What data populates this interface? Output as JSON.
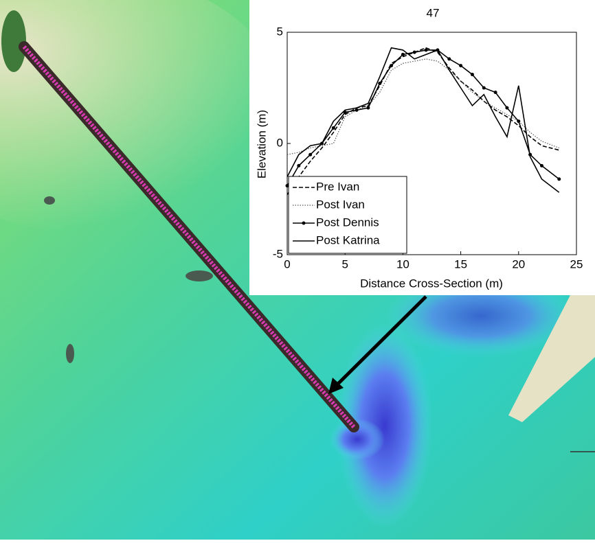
{
  "chart_data": {
    "type": "line",
    "title": "47",
    "xlabel": "Distance Cross-Section (m)",
    "ylabel": "Elevation (m)",
    "x": [
      0,
      1,
      2,
      3,
      4,
      5,
      6,
      7,
      8,
      9,
      10,
      11,
      12,
      13,
      14,
      15,
      16,
      17,
      18,
      19,
      20,
      21,
      22,
      23.5
    ],
    "xlim": [
      0,
      25
    ],
    "xticks": [
      0,
      5,
      10,
      15,
      20,
      25
    ],
    "ylim": [
      -5,
      5
    ],
    "yticks": [
      -5,
      0,
      5
    ],
    "legend": "lower left",
    "series": [
      {
        "name": "Pre Ivan",
        "color": "#000000",
        "line_style": "dashed",
        "marker": "none",
        "values": [
          -2.3,
          -1.5,
          -0.8,
          -0.2,
          0.5,
          1.3,
          1.6,
          1.7,
          2.6,
          3.6,
          3.9,
          4.1,
          4.3,
          4.1,
          3.4,
          2.8,
          2.4,
          1.9,
          1.5,
          1.2,
          0.8,
          0.3,
          -0.1,
          -0.3
        ]
      },
      {
        "name": "Post Ivan",
        "color": "#555555",
        "line_style": "dotted",
        "marker": "none",
        "values": [
          -0.5,
          -0.4,
          -0.2,
          -0.1,
          0,
          1.2,
          1.5,
          1.7,
          2.3,
          3.3,
          3.6,
          3.7,
          3.8,
          3.7,
          3.3,
          2.8,
          2.3,
          1.9,
          1.6,
          1.3,
          1.0,
          0.5,
          0.1,
          -0.2
        ]
      },
      {
        "name": "Post Dennis",
        "color": "#000000",
        "line_style": "solid",
        "marker": "dot",
        "values": [
          -1.9,
          -1.0,
          -0.5,
          0,
          0.7,
          1.4,
          1.5,
          1.6,
          2.7,
          3.5,
          4.0,
          4.1,
          4.2,
          4.2,
          3.8,
          3.5,
          3.1,
          2.5,
          2.3,
          1.6,
          1.0,
          -0.5,
          -1.0,
          -1.6
        ]
      },
      {
        "name": "Post Katrina",
        "color": "#000000",
        "line_style": "solid",
        "marker": "none",
        "values": [
          -1.5,
          -0.5,
          -0.1,
          0,
          1.0,
          1.5,
          1.6,
          1.8,
          3.0,
          4.3,
          4.2,
          3.8,
          4.0,
          4.2,
          3.3,
          2.5,
          1.7,
          2.2,
          1.2,
          0.3,
          2.6,
          -0.6,
          -1.6,
          -2.2
        ]
      }
    ]
  }
}
